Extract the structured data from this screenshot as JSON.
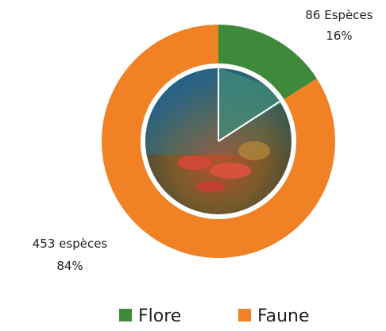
{
  "chart_data": {
    "type": "donut",
    "series": [
      {
        "name": "Flore",
        "color": "#3e8a3a",
        "values": [
          86
        ],
        "value_labels": [
          "86 Espèces"
        ],
        "percentages": [
          16
        ],
        "percentage_labels": [
          "16%"
        ]
      },
      {
        "name": "Faune",
        "color": "#f08124",
        "values": [
          453
        ],
        "value_labels": [
          "453 espèces"
        ],
        "percentages": [
          84
        ],
        "percentage_labels": [
          "84%"
        ]
      }
    ]
  }
}
